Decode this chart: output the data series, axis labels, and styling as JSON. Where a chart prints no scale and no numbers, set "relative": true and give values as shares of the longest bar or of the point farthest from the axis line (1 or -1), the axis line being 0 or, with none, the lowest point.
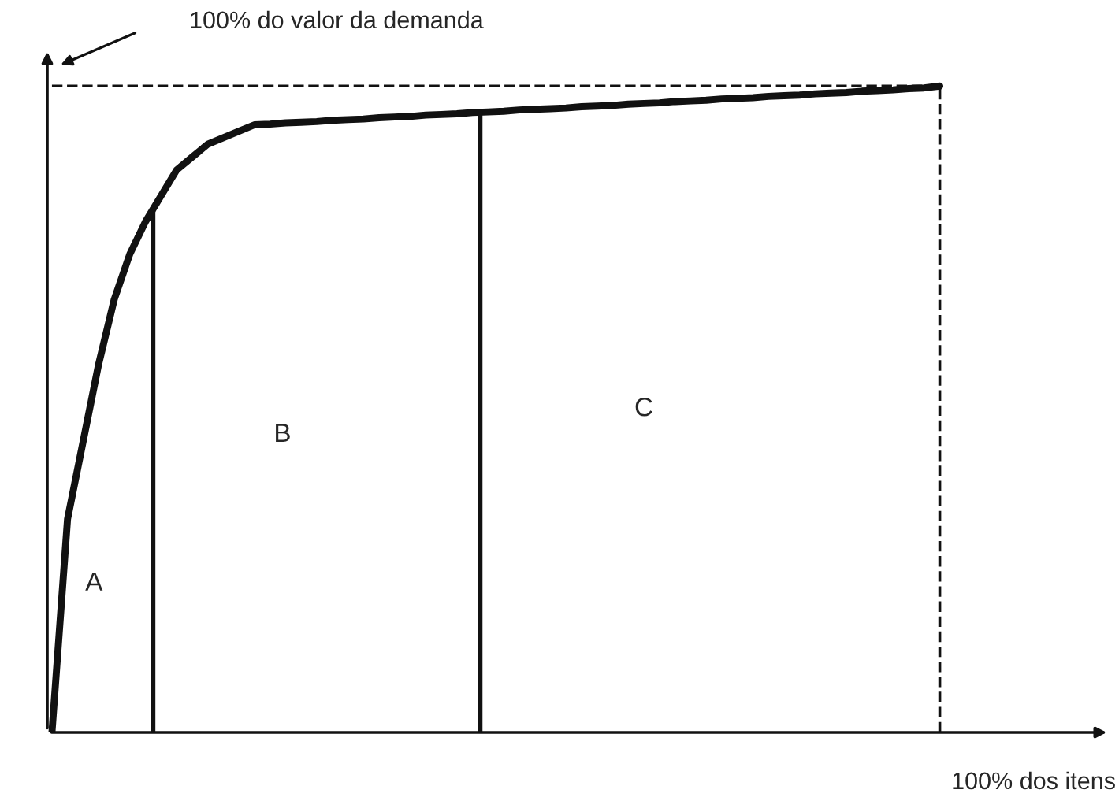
{
  "chart_data": {
    "type": "line",
    "relative": true,
    "ylabel": "100% do valor da demanda",
    "xlabel": "100% dos itens",
    "categories": [
      null,
      null,
      null,
      null,
      null,
      null,
      null,
      null,
      null,
      null,
      null,
      null,
      null,
      null,
      null,
      null,
      null,
      null,
      null,
      null,
      null,
      null,
      null,
      null,
      null,
      null,
      null,
      null,
      null,
      null,
      null,
      null,
      null,
      null,
      null,
      null,
      null,
      null,
      null,
      null,
      null,
      null,
      null,
      null,
      null,
      null,
      null,
      null,
      null,
      null,
      null,
      null,
      null,
      null,
      null,
      null,
      null,
      null
    ],
    "series": [
      {
        "color": "#111111",
        "values": [
          0,
          0.33,
          0.45,
          0.57,
          0.67,
          0.74,
          0.79,
          0.83,
          0.87,
          0.89,
          0.91,
          0.92,
          0.93,
          0.94,
          0.941,
          0.943,
          0.944,
          0.945,
          0.947,
          0.948,
          0.949,
          0.951,
          0.952,
          0.953,
          0.955,
          0.956,
          0.957,
          0.959,
          0.96,
          0.961,
          0.963,
          0.964,
          0.965,
          0.966,
          0.968,
          0.969,
          0.97,
          0.972,
          0.973,
          0.974,
          0.976,
          0.977,
          0.978,
          0.98,
          0.981,
          0.982,
          0.984,
          0.985,
          0.986,
          0.988,
          0.989,
          0.99,
          0.992,
          0.993,
          0.994,
          0.996,
          0.997,
          1
        ]
      }
    ],
    "ref_lines": [
      {
        "axis": "y",
        "value": 1,
        "line_style": "dashed"
      }
    ],
    "annotations": [
      "A",
      "B",
      "C"
    ],
    "legend": false,
    "marker": "none",
    "line_style": "solid"
  }
}
